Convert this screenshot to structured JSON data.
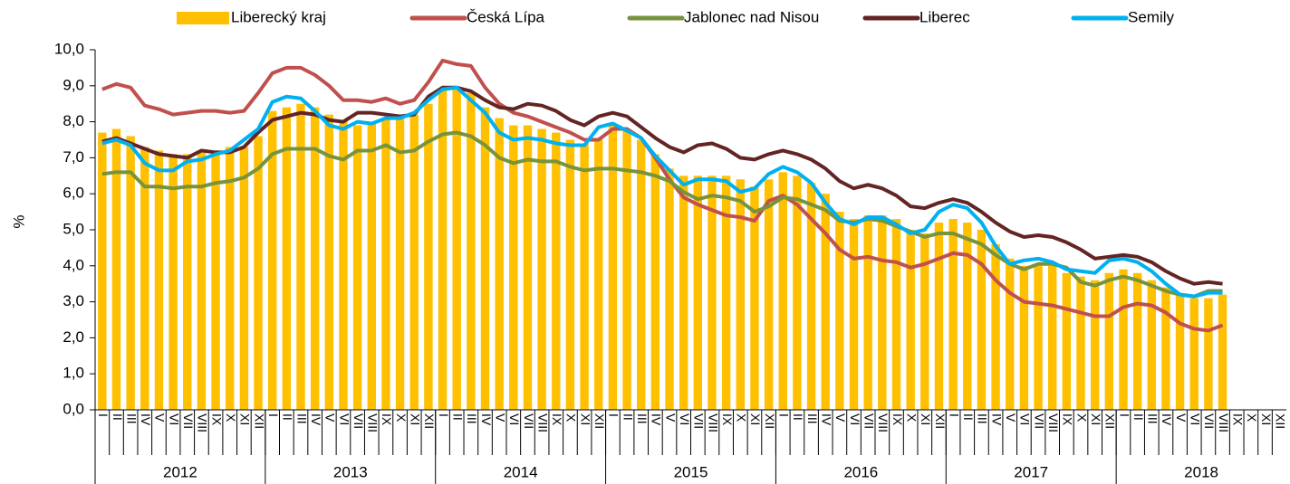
{
  "chart_data": {
    "type": "combo",
    "y_label": "%",
    "grid": false,
    "legend": "top",
    "ylim": [
      0,
      10
    ],
    "yticks": [
      {
        "value": 0,
        "label": "0,0"
      },
      {
        "value": 1,
        "label": "1,0"
      },
      {
        "value": 2,
        "label": "2,0"
      },
      {
        "value": 3,
        "label": "3,0"
      },
      {
        "value": 4,
        "label": "4,0"
      },
      {
        "value": 5,
        "label": "5,0"
      },
      {
        "value": 6,
        "label": "6,0"
      },
      {
        "value": 7,
        "label": "7,0"
      },
      {
        "value": 8,
        "label": "8,0"
      },
      {
        "value": 9,
        "label": "9,0"
      },
      {
        "value": 10,
        "label": "10,0"
      }
    ],
    "years": [
      "2012",
      "2013",
      "2014",
      "2015",
      "2016",
      "2017",
      "2018"
    ],
    "categories": [
      "I",
      "II",
      "III",
      "IV",
      "V",
      "VI",
      "VII",
      "VIII",
      "IX",
      "X",
      "XI",
      "XII",
      "I",
      "II",
      "III",
      "IV",
      "V",
      "VI",
      "VII",
      "VIII",
      "IX",
      "X",
      "XI",
      "XII",
      "I",
      "II",
      "III",
      "IV",
      "V",
      "VI",
      "VII",
      "VIII",
      "IX",
      "X",
      "XI",
      "XII",
      "I",
      "II",
      "III",
      "IV",
      "V",
      "VI",
      "VII",
      "VIII",
      "IX",
      "X",
      "XI",
      "XII",
      "I",
      "II",
      "III",
      "IV",
      "V",
      "VI",
      "VII",
      "VIII",
      "IX",
      "X",
      "XI",
      "XII",
      "I",
      "II",
      "III",
      "IV",
      "V",
      "VI",
      "VII",
      "VIII",
      "IX",
      "X",
      "XI",
      "XII",
      "I",
      "II",
      "III",
      "IV",
      "V",
      "VI",
      "VII",
      "VIII",
      "IX",
      "X",
      "XI",
      "XII"
    ],
    "series": [
      {
        "name": "Liberecký kraj",
        "type": "bar",
        "color": "#ffc000",
        "values": [
          7.7,
          7.8,
          7.6,
          7.3,
          7.2,
          7.1,
          7.1,
          7.2,
          7.2,
          7.3,
          7.3,
          7.6,
          8.3,
          8.4,
          8.5,
          8.4,
          8.2,
          8.0,
          7.9,
          8.0,
          8.1,
          8.1,
          8.2,
          8.5,
          8.9,
          8.9,
          8.8,
          8.4,
          8.1,
          7.9,
          7.9,
          7.8,
          7.7,
          7.5,
          7.4,
          7.5,
          7.9,
          7.8,
          7.5,
          7.1,
          6.7,
          6.5,
          6.5,
          6.5,
          6.5,
          6.4,
          6.2,
          6.4,
          6.6,
          6.5,
          6.3,
          6.0,
          5.5,
          5.3,
          5.4,
          5.4,
          5.3,
          5.0,
          4.9,
          5.2,
          5.3,
          5.2,
          5.0,
          4.6,
          4.2,
          4.0,
          4.0,
          4.0,
          3.8,
          3.7,
          3.6,
          3.8,
          3.9,
          3.8,
          3.6,
          3.4,
          3.2,
          3.1,
          3.1,
          3.2,
          null,
          null,
          null,
          null
        ]
      },
      {
        "name": "Česká Lípa",
        "type": "line",
        "color": "#c0504d",
        "values": [
          8.9,
          9.05,
          8.95,
          8.45,
          8.35,
          8.2,
          8.25,
          8.3,
          8.3,
          8.25,
          8.3,
          8.8,
          9.35,
          9.5,
          9.5,
          9.3,
          9.0,
          8.6,
          8.6,
          8.55,
          8.65,
          8.5,
          8.6,
          9.1,
          9.7,
          9.6,
          9.55,
          8.95,
          8.5,
          8.25,
          8.15,
          8.0,
          7.85,
          7.7,
          7.5,
          7.5,
          7.8,
          7.8,
          7.55,
          7.0,
          6.4,
          5.9,
          5.7,
          5.55,
          5.4,
          5.35,
          5.25,
          5.8,
          5.95,
          5.7,
          5.3,
          4.9,
          4.45,
          4.2,
          4.25,
          4.15,
          4.1,
          3.95,
          4.05,
          4.2,
          4.35,
          4.3,
          4.05,
          3.6,
          3.25,
          3.0,
          2.95,
          2.9,
          2.8,
          2.7,
          2.6,
          2.6,
          2.85,
          2.95,
          2.9,
          2.7,
          2.4,
          2.25,
          2.2,
          2.35,
          null,
          null,
          null,
          null
        ]
      },
      {
        "name": "Jablonec nad Nisou",
        "type": "line",
        "color": "#77933c",
        "values": [
          6.55,
          6.6,
          6.6,
          6.2,
          6.2,
          6.15,
          6.2,
          6.2,
          6.3,
          6.35,
          6.45,
          6.7,
          7.1,
          7.25,
          7.25,
          7.25,
          7.05,
          6.95,
          7.2,
          7.2,
          7.35,
          7.15,
          7.2,
          7.45,
          7.65,
          7.7,
          7.6,
          7.35,
          7.0,
          6.85,
          6.95,
          6.9,
          6.9,
          6.75,
          6.65,
          6.7,
          6.7,
          6.65,
          6.6,
          6.5,
          6.35,
          6.05,
          5.85,
          5.95,
          5.9,
          5.8,
          5.5,
          5.65,
          5.9,
          5.85,
          5.7,
          5.55,
          5.25,
          5.2,
          5.3,
          5.25,
          5.1,
          4.95,
          4.8,
          4.9,
          4.9,
          4.75,
          4.6,
          4.3,
          4.05,
          3.9,
          4.05,
          4.05,
          3.95,
          3.55,
          3.45,
          3.6,
          3.7,
          3.6,
          3.45,
          3.3,
          3.2,
          3.15,
          3.3,
          3.3,
          null,
          null,
          null,
          null
        ]
      },
      {
        "name": "Liberec",
        "type": "line",
        "color": "#632523",
        "values": [
          7.45,
          7.55,
          7.4,
          7.25,
          7.1,
          7.05,
          7.0,
          7.2,
          7.15,
          7.15,
          7.3,
          7.7,
          8.05,
          8.15,
          8.25,
          8.2,
          8.05,
          8.0,
          8.25,
          8.25,
          8.2,
          8.15,
          8.2,
          8.7,
          8.95,
          8.95,
          8.85,
          8.6,
          8.4,
          8.35,
          8.5,
          8.45,
          8.3,
          8.05,
          7.9,
          8.15,
          8.25,
          8.15,
          7.85,
          7.55,
          7.3,
          7.15,
          7.35,
          7.4,
          7.25,
          7.0,
          6.95,
          7.1,
          7.2,
          7.1,
          6.95,
          6.7,
          6.35,
          6.15,
          6.25,
          6.15,
          5.95,
          5.65,
          5.6,
          5.75,
          5.85,
          5.75,
          5.5,
          5.2,
          4.95,
          4.8,
          4.85,
          4.8,
          4.65,
          4.45,
          4.2,
          4.25,
          4.3,
          4.25,
          4.1,
          3.85,
          3.65,
          3.5,
          3.55,
          3.5,
          null,
          null,
          null,
          null
        ]
      },
      {
        "name": "Semily",
        "type": "line",
        "color": "#00b0f0",
        "values": [
          7.4,
          7.5,
          7.35,
          6.85,
          6.65,
          6.65,
          6.9,
          6.95,
          7.1,
          7.2,
          7.5,
          7.8,
          8.55,
          8.7,
          8.65,
          8.3,
          7.9,
          7.8,
          8.0,
          7.95,
          8.1,
          8.1,
          8.25,
          8.6,
          8.9,
          8.95,
          8.6,
          8.25,
          7.7,
          7.5,
          7.55,
          7.5,
          7.4,
          7.35,
          7.35,
          7.85,
          7.95,
          7.75,
          7.55,
          7.05,
          6.65,
          6.25,
          6.4,
          6.4,
          6.35,
          6.05,
          6.15,
          6.55,
          6.75,
          6.6,
          6.3,
          5.75,
          5.3,
          5.15,
          5.35,
          5.35,
          5.15,
          4.9,
          5.0,
          5.5,
          5.7,
          5.6,
          5.2,
          4.55,
          4.05,
          4.15,
          4.2,
          4.1,
          3.9,
          3.85,
          3.8,
          4.15,
          4.2,
          4.1,
          3.85,
          3.5,
          3.2,
          3.15,
          3.25,
          3.25,
          null,
          null,
          null,
          null
        ]
      }
    ]
  }
}
